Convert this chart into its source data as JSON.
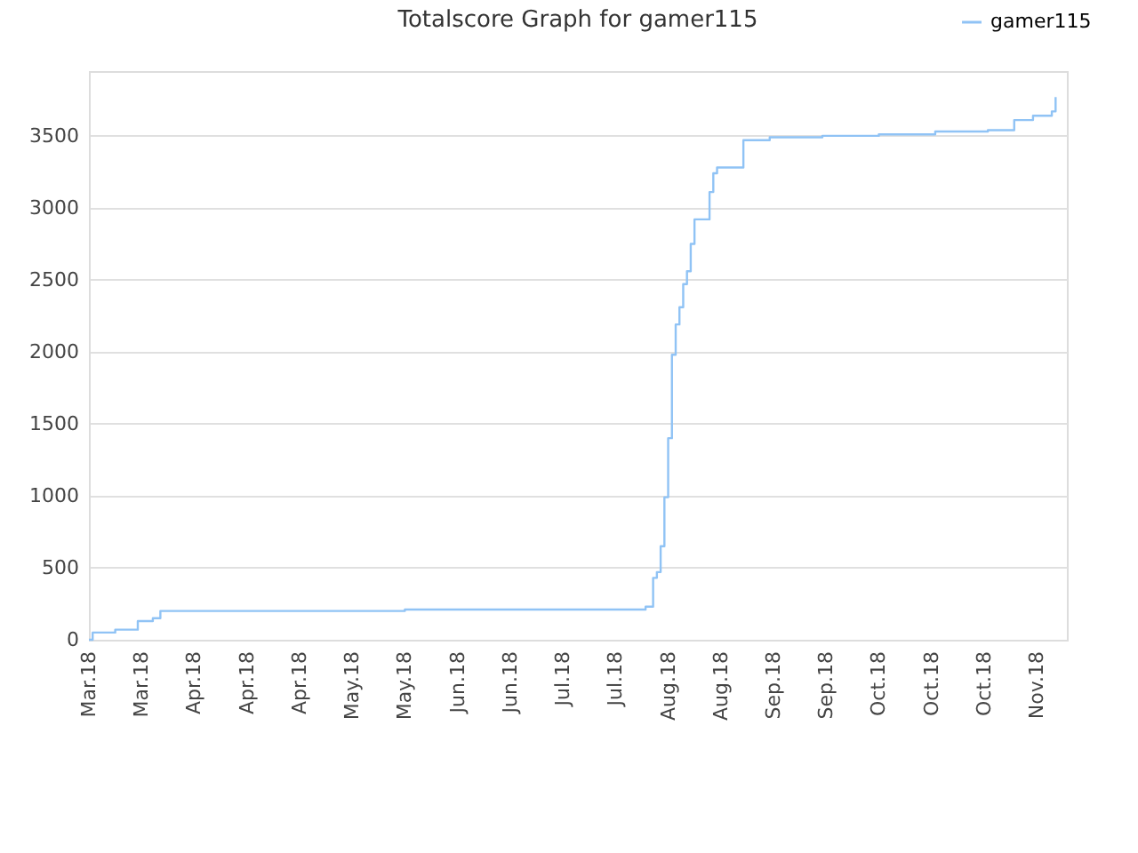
{
  "chart_data": {
    "type": "step",
    "title": "Totalscore Graph for gamer115",
    "categories": [
      "Mar.18",
      null,
      null,
      null,
      null,
      null,
      null,
      null,
      null,
      null,
      null,
      null,
      null,
      null,
      "Mar.18",
      null,
      null,
      null,
      null,
      null,
      null,
      null,
      null,
      null,
      null,
      null,
      null,
      null,
      "Apr.18",
      null,
      null,
      null,
      null,
      null,
      null,
      null,
      null,
      null,
      null,
      null,
      null,
      null,
      "Apr.18",
      null,
      null,
      null,
      null,
      null,
      null,
      null,
      null,
      null,
      null,
      null,
      null,
      null,
      "Apr.18",
      null,
      null,
      null,
      null,
      null,
      null,
      null,
      null,
      null,
      null,
      null,
      null,
      null,
      "May.18",
      null,
      null,
      null,
      null,
      null,
      null,
      null,
      null,
      null,
      null,
      null,
      null,
      null,
      "May.18",
      null,
      null,
      null,
      null,
      null,
      null,
      null,
      null,
      null,
      null,
      null,
      null,
      null,
      "Jun.18",
      null,
      null,
      null,
      null,
      null,
      null,
      null,
      null,
      null,
      null,
      null,
      null,
      null,
      "Jun.18",
      null,
      null,
      null,
      null,
      null,
      null,
      null,
      null,
      null,
      null,
      null,
      null,
      null,
      "Jul.18",
      null,
      null,
      null,
      null,
      null,
      null,
      null,
      null,
      null,
      null,
      null,
      null,
      null,
      "Jul.18",
      null,
      null,
      null,
      null,
      null,
      null,
      null,
      null,
      null,
      null,
      null,
      null,
      null,
      "Aug.18",
      null,
      null,
      null,
      null,
      null,
      null,
      null,
      null,
      null,
      null,
      null,
      null,
      null,
      "Aug.18",
      null,
      null,
      null,
      null,
      null,
      null,
      null,
      null,
      null,
      null,
      null,
      null,
      null,
      "Sep.18",
      null,
      null,
      null,
      null,
      null,
      null,
      null,
      null,
      null,
      null,
      null,
      null,
      null,
      "Sep.18",
      null,
      null,
      null,
      null,
      null,
      null,
      null,
      null,
      null,
      null,
      null,
      null,
      null,
      "Oct.18",
      null,
      null,
      null,
      null,
      null,
      null,
      null,
      null,
      null,
      null,
      null,
      null,
      null,
      "Oct.18",
      null,
      null,
      null,
      null,
      null,
      null,
      null,
      null,
      null,
      null,
      null,
      null,
      null,
      "Oct.18",
      null,
      null,
      null,
      null,
      null,
      null,
      null,
      null,
      null,
      null,
      null,
      null,
      null,
      "Nov.18",
      null,
      null,
      null,
      null,
      null,
      null,
      null,
      null
    ],
    "series": [
      {
        "name": "gamer115",
        "color": "#90c3f5",
        "values": [
          0,
          50,
          50,
          50,
          50,
          50,
          50,
          70,
          70,
          70,
          70,
          70,
          70,
          130,
          130,
          130,
          130,
          150,
          150,
          200,
          200,
          200,
          200,
          200,
          200,
          200,
          200,
          200,
          200,
          200,
          200,
          200,
          200,
          200,
          200,
          200,
          200,
          200,
          200,
          200,
          200,
          200,
          200,
          200,
          200,
          200,
          200,
          200,
          200,
          200,
          200,
          200,
          200,
          200,
          200,
          200,
          200,
          200,
          200,
          200,
          200,
          200,
          200,
          200,
          200,
          200,
          200,
          200,
          200,
          200,
          200,
          200,
          200,
          200,
          200,
          200,
          200,
          200,
          200,
          200,
          200,
          200,
          200,
          200,
          210,
          210,
          210,
          210,
          210,
          210,
          210,
          210,
          210,
          210,
          210,
          210,
          210,
          210,
          210,
          210,
          210,
          210,
          210,
          210,
          210,
          210,
          210,
          210,
          210,
          210,
          210,
          210,
          210,
          210,
          210,
          210,
          210,
          210,
          210,
          210,
          210,
          210,
          210,
          210,
          210,
          210,
          210,
          210,
          210,
          210,
          210,
          210,
          210,
          210,
          210,
          210,
          210,
          210,
          210,
          210,
          210,
          210,
          210,
          210,
          210,
          210,
          210,
          210,
          230,
          230,
          430,
          470,
          650,
          990,
          1400,
          1980,
          2190,
          2310,
          2470,
          2560,
          2750,
          2920,
          2920,
          2920,
          2920,
          3110,
          3240,
          3280,
          3280,
          3280,
          3280,
          3280,
          3280,
          3280,
          3470,
          3470,
          3470,
          3470,
          3470,
          3470,
          3470,
          3490,
          3490,
          3490,
          3490,
          3490,
          3490,
          3490,
          3490,
          3490,
          3490,
          3490,
          3490,
          3490,
          3490,
          3500,
          3500,
          3500,
          3500,
          3500,
          3500,
          3500,
          3500,
          3500,
          3500,
          3500,
          3500,
          3500,
          3500,
          3500,
          3510,
          3510,
          3510,
          3510,
          3510,
          3510,
          3510,
          3510,
          3510,
          3510,
          3510,
          3510,
          3510,
          3510,
          3510,
          3530,
          3530,
          3530,
          3530,
          3530,
          3530,
          3530,
          3530,
          3530,
          3530,
          3530,
          3530,
          3530,
          3530,
          3540,
          3540,
          3540,
          3540,
          3540,
          3540,
          3540,
          3610,
          3610,
          3610,
          3610,
          3610,
          3640,
          3640,
          3640,
          3640,
          3640,
          3670,
          3770,
          null,
          null,
          null
        ]
      }
    ],
    "ylim": [
      0,
      3950
    ],
    "yticks": [
      0,
      500,
      1000,
      1500,
      2000,
      2500,
      3000,
      3500
    ],
    "grid": "y",
    "legend": "top right",
    "marker": "none",
    "line_style": "solid"
  }
}
